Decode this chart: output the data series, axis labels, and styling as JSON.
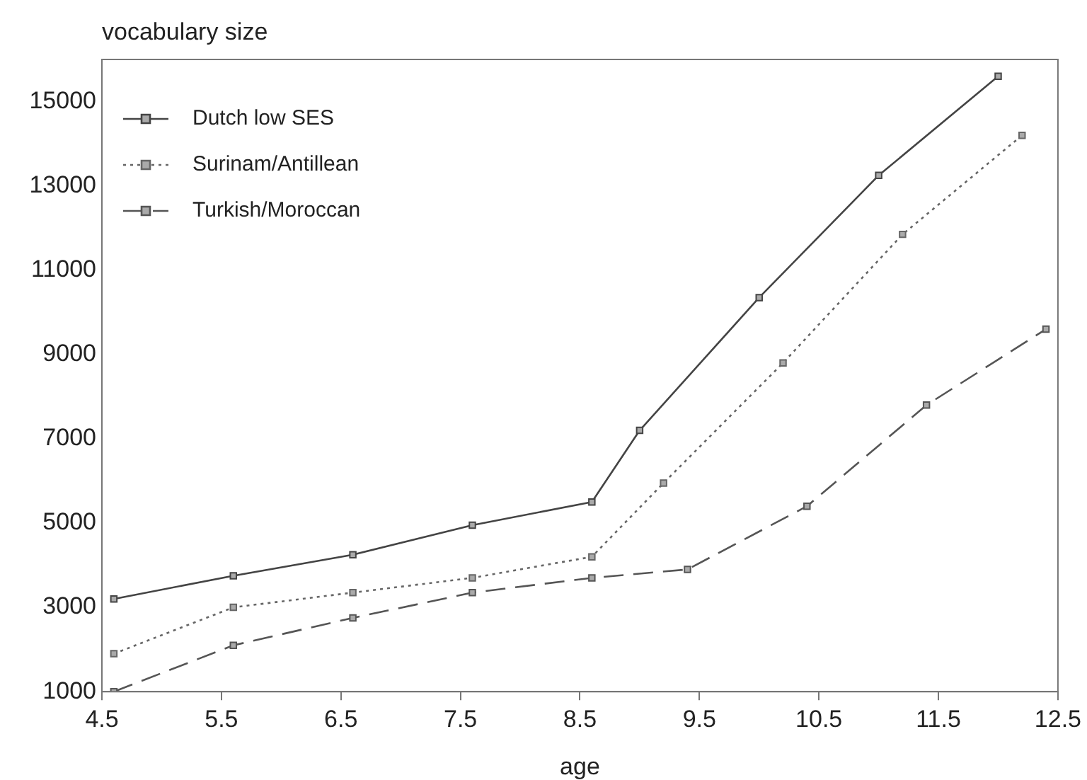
{
  "chart_data": {
    "type": "line",
    "xlabel": "age",
    "ylabel": "vocabulary size",
    "xlim": [
      4.5,
      12.5
    ],
    "xticks": [
      4.5,
      5.5,
      6.5,
      7.5,
      8.5,
      9.5,
      10.5,
      11.5,
      12.5
    ],
    "ylim": [
      1000,
      16000
    ],
    "yticks": [
      1000,
      3000,
      5000,
      7000,
      9000,
      11000,
      13000,
      15000
    ],
    "grid": false,
    "legend": "top left",
    "marker": "square",
    "series": [
      {
        "name": "Dutch low SES",
        "color": "#444444",
        "line_style": "solid",
        "x": [
          4.6,
          5.6,
          6.6,
          7.6,
          8.6,
          9.0,
          10.0,
          11.0,
          12.0
        ],
        "values": [
          3200,
          3750,
          4250,
          4950,
          5500,
          7200,
          10350,
          13250,
          15600
        ]
      },
      {
        "name": "Surinam/Antillean",
        "color": "#666666",
        "line_style": "dotted",
        "x": [
          4.6,
          5.6,
          6.6,
          7.6,
          8.6,
          9.2,
          10.2,
          11.2,
          12.2
        ],
        "values": [
          1900,
          3000,
          3350,
          3700,
          4200,
          5950,
          8800,
          11850,
          14200
        ]
      },
      {
        "name": "Turkish/Moroccan",
        "color": "#555555",
        "line_style": "dashed",
        "x": [
          4.6,
          5.6,
          6.6,
          7.6,
          8.6,
          9.4,
          10.4,
          11.4,
          12.4
        ],
        "values": [
          1000,
          2100,
          2750,
          3350,
          3700,
          3900,
          5400,
          7800,
          9600
        ]
      }
    ]
  }
}
